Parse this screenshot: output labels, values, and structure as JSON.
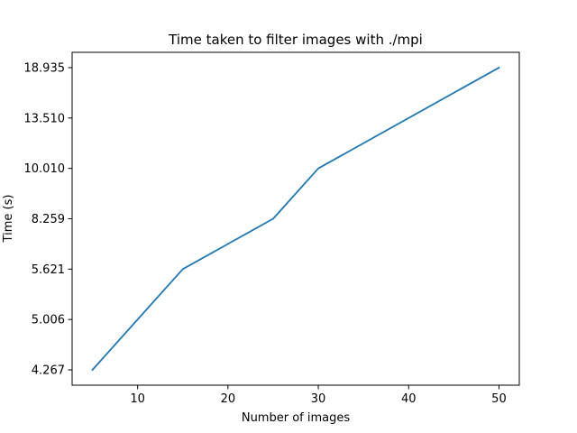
{
  "chart_data": {
    "type": "line",
    "title": "Time taken to filter images with ./mpi",
    "xlabel": "Number of images",
    "ylabel": "Time (s)",
    "x": [
      5,
      15,
      25,
      30,
      50
    ],
    "y_scale": "categorical-ordered",
    "y_ticks": [
      "4.267",
      "5.006",
      "5.621",
      "8.259",
      "10.010",
      "13.510",
      "18.935"
    ],
    "x_ticks": [
      "10",
      "20",
      "30",
      "40",
      "50"
    ],
    "xlim": [
      2.75,
      52.25
    ],
    "series": [
      {
        "values": [
          4.267,
          5.621,
          8.259,
          10.01,
          18.935
        ],
        "color": "#1f77b4"
      }
    ],
    "grid": false,
    "legend": "none"
  }
}
